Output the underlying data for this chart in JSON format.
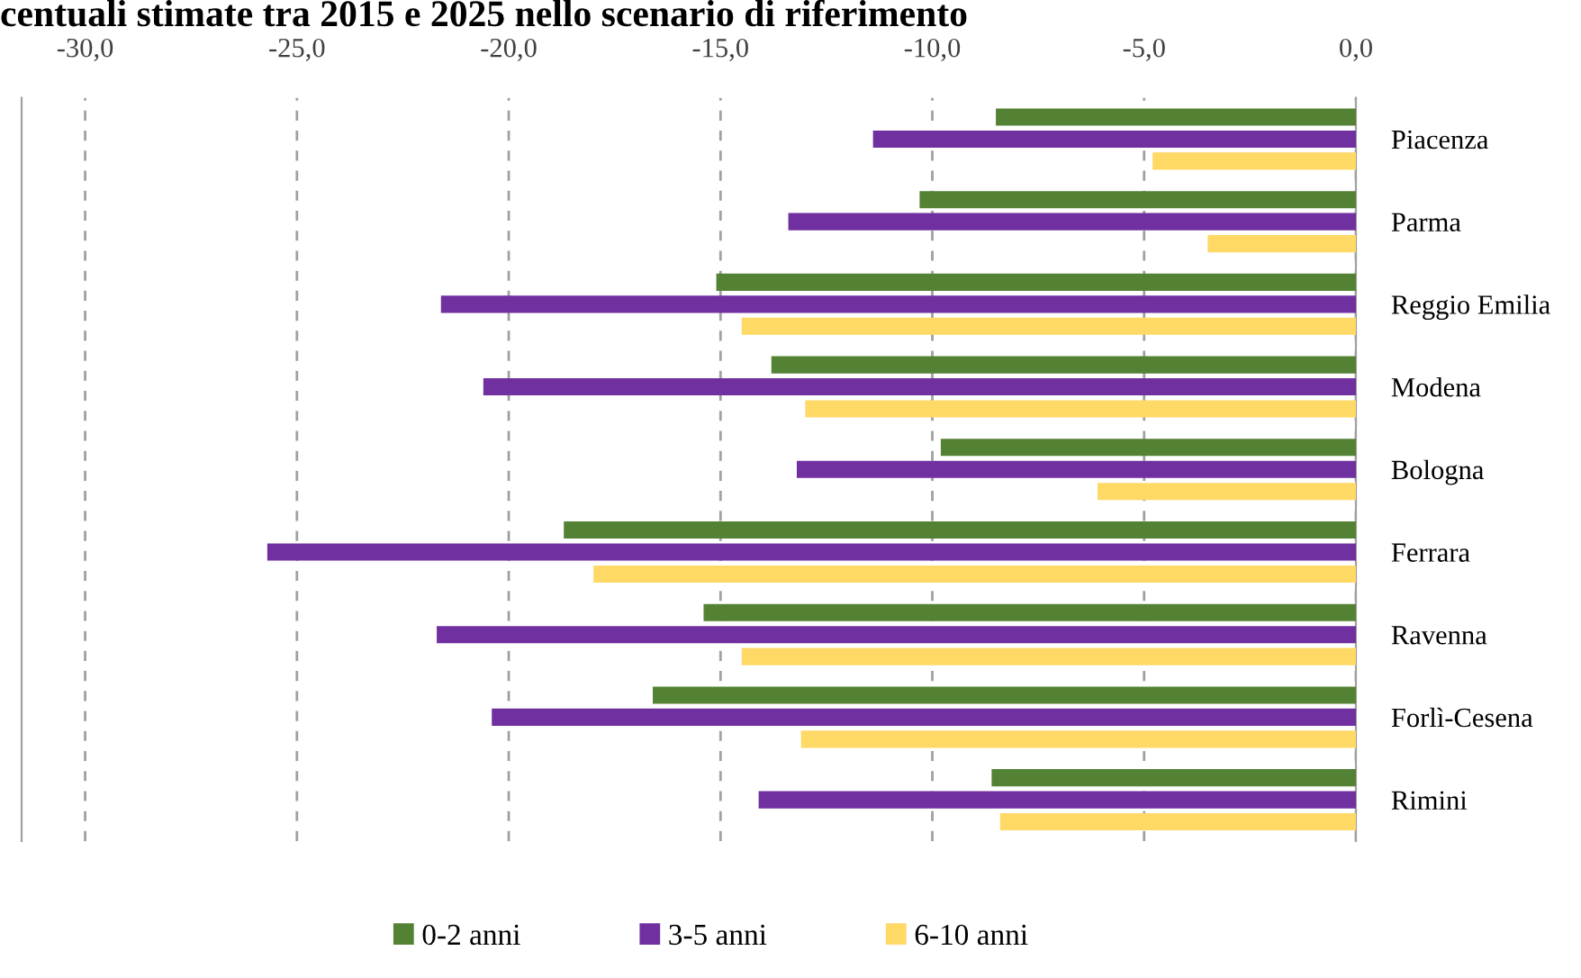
{
  "chart_data": {
    "type": "bar",
    "orientation": "horizontal",
    "title": "centuali stimate tra 2015 e 2025 nello scenario di riferimento",
    "categories": [
      "Piacenza",
      "Parma",
      "Reggio Emilia",
      "Modena",
      "Bologna",
      "Ferrara",
      "Ravenna",
      "Forlì-Cesena",
      "Rimini"
    ],
    "series": [
      {
        "name": "0-2 anni",
        "color": "#548235",
        "values": [
          -8.5,
          -10.3,
          -15.1,
          -13.8,
          -9.8,
          -18.7,
          -15.4,
          -16.6,
          -8.6
        ]
      },
      {
        "name": "3-5 anni",
        "color": "#7030a0",
        "values": [
          -11.4,
          -13.4,
          -21.6,
          -20.6,
          -13.2,
          -25.7,
          -21.7,
          -20.4,
          -14.1
        ]
      },
      {
        "name": "6-10 anni",
        "color": "#ffd966",
        "values": [
          -4.8,
          -3.5,
          -14.5,
          -13.0,
          -6.1,
          -18.0,
          -14.5,
          -13.1,
          -8.4
        ]
      }
    ],
    "xlim": [
      -31.5,
      0
    ],
    "xticks": [
      {
        "value": -30,
        "label": "-30,0"
      },
      {
        "value": -25,
        "label": "-25,0"
      },
      {
        "value": -20,
        "label": "-20,0"
      },
      {
        "value": -15,
        "label": "-15,0"
      },
      {
        "value": -10,
        "label": "-10,0"
      },
      {
        "value": -5,
        "label": "-5,0"
      },
      {
        "value": 0,
        "label": "0,0"
      }
    ],
    "grid": "x",
    "legend": "bottom"
  }
}
